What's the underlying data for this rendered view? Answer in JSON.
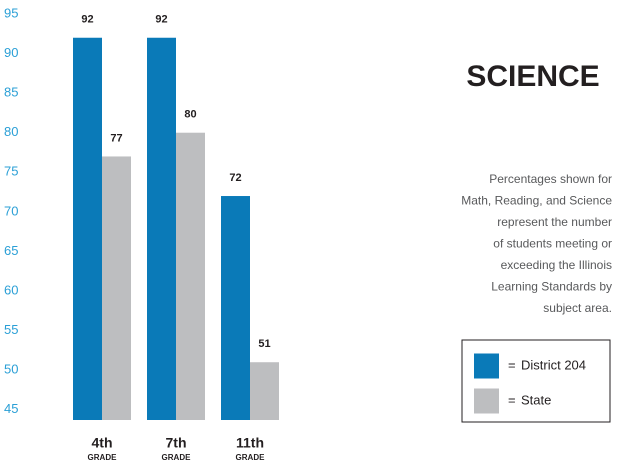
{
  "chart_data": {
    "type": "bar",
    "title": "SCIENCE",
    "description": [
      "Percentages shown for",
      "Math, Reading, and Science",
      "represent the number",
      "of students meeting or",
      "exceeding the Illinois",
      "Learning Standards by",
      "subject area."
    ],
    "categories": [
      "4th",
      "7th",
      "11th"
    ],
    "category_note": "GRADE",
    "series": [
      {
        "name": "District 204",
        "color": "#0a7ab8",
        "values": [
          92,
          92,
          72
        ]
      },
      {
        "name": "State",
        "color": "#bdbec0",
        "values": [
          77,
          80,
          51
        ]
      }
    ],
    "legend_separator": "=",
    "ylim": [
      43.7,
      95
    ],
    "yticks": [
      45,
      50,
      55,
      60,
      65,
      70,
      75,
      80,
      85,
      90,
      95
    ],
    "grid": false
  }
}
